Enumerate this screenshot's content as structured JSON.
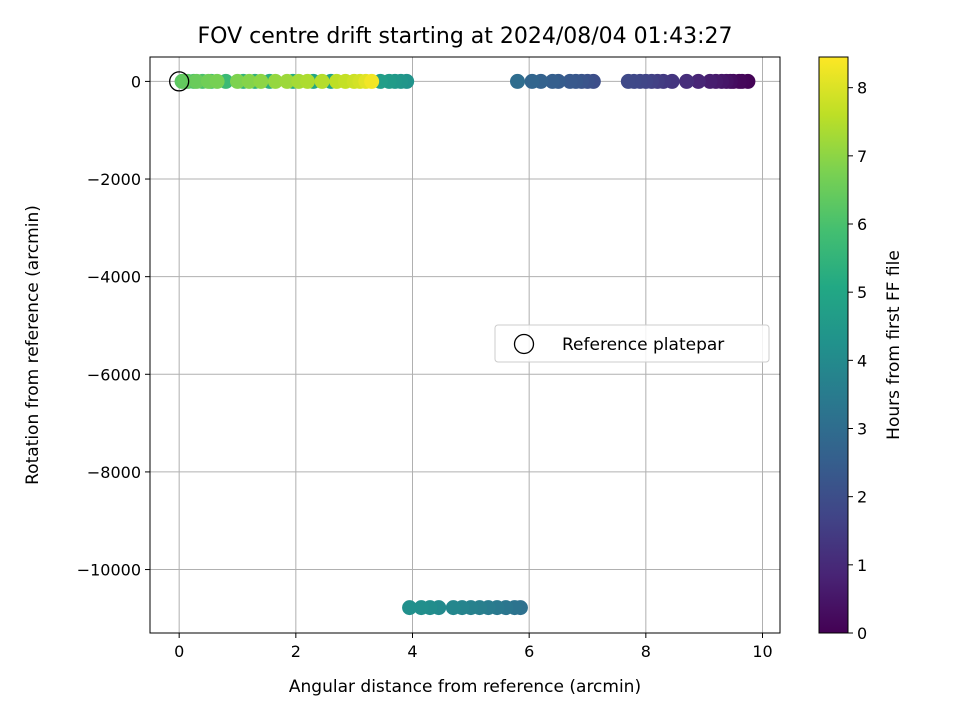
{
  "chart_data": {
    "type": "scatter",
    "title": "FOV centre drift starting at 2024/08/04 01:43:27",
    "xlabel": "Angular distance from reference (arcmin)",
    "ylabel": "Rotation from reference (arcmin)",
    "xlim": [
      -0.5,
      10.3
    ],
    "ylim": [
      -11300,
      500
    ],
    "xticks": [
      0,
      2,
      4,
      6,
      8,
      10
    ],
    "yticks": [
      0,
      -2000,
      -4000,
      -6000,
      -8000,
      -10000
    ],
    "grid": true,
    "colormap": "viridis",
    "colorbar": {
      "label": "Hours from first FF file",
      "range": [
        0,
        8.45
      ],
      "ticks": [
        0,
        1,
        2,
        3,
        4,
        5,
        6,
        7,
        8
      ]
    },
    "legend": {
      "position": "center-right",
      "entries": [
        {
          "label": "Reference platepar",
          "marker": "hollow-circle"
        }
      ]
    },
    "reference_point": {
      "x": 0,
      "y": 0
    },
    "series": [
      {
        "points": [
          {
            "x": 9.75,
            "y": 0,
            "c": 0.05
          },
          {
            "x": 9.65,
            "y": 0,
            "c": 0.1
          },
          {
            "x": 9.6,
            "y": 0,
            "c": 0.15
          },
          {
            "x": 9.5,
            "y": 0,
            "c": 0.2
          },
          {
            "x": 9.45,
            "y": 0,
            "c": 0.3
          },
          {
            "x": 9.38,
            "y": 0,
            "c": 0.4
          },
          {
            "x": 9.3,
            "y": 0,
            "c": 0.5
          },
          {
            "x": 9.2,
            "y": 0,
            "c": 0.6
          },
          {
            "x": 9.1,
            "y": 0,
            "c": 0.7
          },
          {
            "x": 8.9,
            "y": 0,
            "c": 0.9
          },
          {
            "x": 8.7,
            "y": 0,
            "c": 1.1
          },
          {
            "x": 8.45,
            "y": 0,
            "c": 1.3
          },
          {
            "x": 8.3,
            "y": 0,
            "c": 1.4
          },
          {
            "x": 8.2,
            "y": 0,
            "c": 1.5
          },
          {
            "x": 8.1,
            "y": 0,
            "c": 1.6
          },
          {
            "x": 8.0,
            "y": 0,
            "c": 1.7
          },
          {
            "x": 7.9,
            "y": 0,
            "c": 1.75
          },
          {
            "x": 7.8,
            "y": 0,
            "c": 1.8
          },
          {
            "x": 7.7,
            "y": 0,
            "c": 1.85
          },
          {
            "x": 7.1,
            "y": 0,
            "c": 2.0
          },
          {
            "x": 7.0,
            "y": 0,
            "c": 2.1
          },
          {
            "x": 6.9,
            "y": 0,
            "c": 2.2
          },
          {
            "x": 6.8,
            "y": 0,
            "c": 2.3
          },
          {
            "x": 6.7,
            "y": 0,
            "c": 2.35
          },
          {
            "x": 6.5,
            "y": 0,
            "c": 2.45
          },
          {
            "x": 6.4,
            "y": 0,
            "c": 2.55
          },
          {
            "x": 6.2,
            "y": 0,
            "c": 2.65
          },
          {
            "x": 6.05,
            "y": 0,
            "c": 2.75
          },
          {
            "x": 5.8,
            "y": 0,
            "c": 3.0
          },
          {
            "x": 5.85,
            "y": -10780,
            "c": 3.1
          },
          {
            "x": 5.75,
            "y": -10780,
            "c": 3.2
          },
          {
            "x": 5.6,
            "y": -10780,
            "c": 3.3
          },
          {
            "x": 5.45,
            "y": -10780,
            "c": 3.4
          },
          {
            "x": 5.3,
            "y": -10780,
            "c": 3.5
          },
          {
            "x": 5.15,
            "y": -10780,
            "c": 3.6
          },
          {
            "x": 5.0,
            "y": -10780,
            "c": 3.7
          },
          {
            "x": 4.85,
            "y": -10780,
            "c": 3.8
          },
          {
            "x": 4.7,
            "y": -10780,
            "c": 3.9
          },
          {
            "x": 4.45,
            "y": -10780,
            "c": 4.0
          },
          {
            "x": 4.3,
            "y": -10780,
            "c": 4.1
          },
          {
            "x": 4.15,
            "y": -10780,
            "c": 4.15
          },
          {
            "x": 3.95,
            "y": -10780,
            "c": 4.2
          },
          {
            "x": 3.9,
            "y": 0,
            "c": 4.3
          },
          {
            "x": 3.8,
            "y": 0,
            "c": 4.4
          },
          {
            "x": 3.7,
            "y": 0,
            "c": 4.5
          },
          {
            "x": 3.6,
            "y": 0,
            "c": 4.6
          },
          {
            "x": 3.45,
            "y": 0,
            "c": 4.7
          },
          {
            "x": 2.6,
            "y": 0,
            "c": 4.9
          },
          {
            "x": 2.3,
            "y": 0,
            "c": 5.0
          },
          {
            "x": 1.95,
            "y": 0,
            "c": 5.2
          },
          {
            "x": 1.55,
            "y": 0,
            "c": 5.3
          },
          {
            "x": 1.3,
            "y": 0,
            "c": 5.4
          },
          {
            "x": 1.1,
            "y": 0,
            "c": 5.5
          },
          {
            "x": 0.8,
            "y": 0,
            "c": 5.7
          },
          {
            "x": 0.55,
            "y": 0,
            "c": 5.9
          },
          {
            "x": 0.4,
            "y": 0,
            "c": 6.0
          },
          {
            "x": 0.25,
            "y": 0,
            "c": 6.1
          },
          {
            "x": 0.15,
            "y": 0,
            "c": 6.2
          },
          {
            "x": 0.05,
            "y": 0,
            "c": 6.3
          },
          {
            "x": 0.1,
            "y": 0,
            "c": 6.4
          },
          {
            "x": 0.3,
            "y": 0,
            "c": 6.5
          },
          {
            "x": 0.5,
            "y": 0,
            "c": 6.6
          },
          {
            "x": 0.65,
            "y": 0,
            "c": 6.7
          },
          {
            "x": 1.0,
            "y": 0,
            "c": 6.8
          },
          {
            "x": 1.2,
            "y": 0,
            "c": 6.9
          },
          {
            "x": 1.4,
            "y": 0,
            "c": 7.0
          },
          {
            "x": 1.65,
            "y": 0,
            "c": 7.1
          },
          {
            "x": 1.85,
            "y": 0,
            "c": 7.2
          },
          {
            "x": 2.05,
            "y": 0,
            "c": 7.3
          },
          {
            "x": 2.2,
            "y": 0,
            "c": 7.4
          },
          {
            "x": 2.45,
            "y": 0,
            "c": 7.5
          },
          {
            "x": 2.7,
            "y": 0,
            "c": 7.6
          },
          {
            "x": 2.85,
            "y": 0,
            "c": 7.7
          },
          {
            "x": 3.0,
            "y": 0,
            "c": 7.8
          },
          {
            "x": 3.1,
            "y": 0,
            "c": 7.9
          },
          {
            "x": 3.2,
            "y": 0,
            "c": 8.1
          },
          {
            "x": 3.3,
            "y": 0,
            "c": 8.3
          }
        ]
      }
    ]
  }
}
